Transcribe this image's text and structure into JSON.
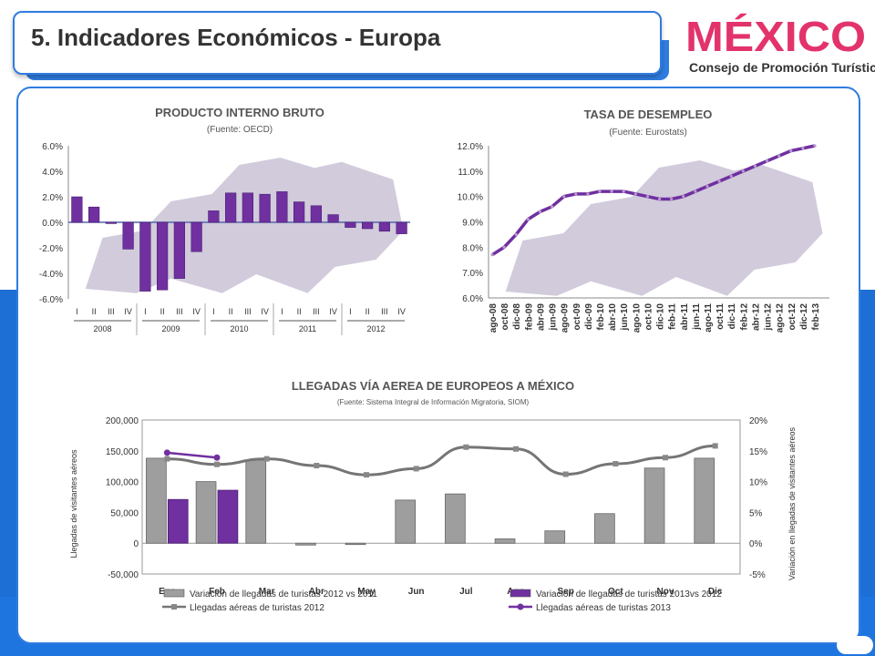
{
  "header": {
    "title": "5. Indicadores Económicos - Europa"
  },
  "logo": {
    "wordmark": "MÉXICO",
    "subtitle": "Consejo de Promoción Turística"
  },
  "colors": {
    "purple": "#7030a0",
    "gray": "#9e9e9e",
    "blue": "#2f7ce0",
    "map": "#c9c2d6"
  },
  "chart_data": [
    {
      "type": "bar",
      "title": "PRODUCTO INTERNO BRUTO",
      "subtitle": "(Fuente: OECD)",
      "ylim": [
        -6,
        6
      ],
      "yticks": [
        "6.0%",
        "4.0%",
        "2.0%",
        "0.0%",
        "-2.0%",
        "-4.0%",
        "-6.0%"
      ],
      "categories": [
        "I",
        "II",
        "III",
        "IV",
        "I",
        "II",
        "III",
        "IV",
        "I",
        "II",
        "III",
        "IV",
        "I",
        "II",
        "III",
        "IV",
        "I",
        "II",
        "III",
        "IV"
      ],
      "groups": [
        "2008",
        "2009",
        "2010",
        "2011",
        "2012"
      ],
      "values": [
        2.0,
        1.2,
        -0.1,
        -2.1,
        -5.4,
        -5.3,
        -4.4,
        -2.3,
        0.9,
        2.3,
        2.3,
        2.2,
        2.4,
        1.6,
        1.3,
        0.6,
        -0.4,
        -0.5,
        -0.7,
        -0.9
      ]
    },
    {
      "type": "line",
      "title": "TASA DE DESEMPLEO",
      "subtitle": "(Fuente: Eurostats)",
      "ylim": [
        6,
        12
      ],
      "yticks": [
        "12.0%",
        "11.0%",
        "10.0%",
        "9.0%",
        "8.0%",
        "7.0%",
        "6.0%"
      ],
      "x": [
        "ago-08",
        "oct-08",
        "dic-08",
        "feb-09",
        "abr-09",
        "jun-09",
        "ago-09",
        "oct-09",
        "dic-09",
        "feb-10",
        "abr-10",
        "jun-10",
        "ago-10",
        "oct-10",
        "dic-10",
        "feb-11",
        "abr-11",
        "jun-11",
        "ago-11",
        "oct-11",
        "dic-11",
        "feb-12",
        "abr-12",
        "jun-12",
        "ago-12",
        "oct-12",
        "dic-12",
        "feb-13"
      ],
      "values": [
        7.7,
        8.0,
        8.5,
        9.1,
        9.4,
        9.6,
        10.0,
        10.1,
        10.1,
        10.2,
        10.2,
        10.2,
        10.1,
        10.0,
        9.9,
        9.9,
        10.0,
        10.2,
        10.4,
        10.6,
        10.8,
        11.0,
        11.2,
        11.4,
        11.6,
        11.8,
        11.9,
        12.0
      ]
    },
    {
      "type": "bar",
      "title": "LLEGADAS VÍA AEREA DE EUROPEOS A MÉXICO",
      "subtitle": "(Fuente: Sistema Integral de Información Migratoria, SIOM)",
      "ylabel": "Llegadas de visitantes aéreos",
      "y2label": "Variación en llegadas de visitantes aéreos",
      "ylim": [
        -50000,
        200000
      ],
      "y2lim": [
        -5,
        20
      ],
      "yticks": [
        "200,000",
        "150,000",
        "100,000",
        "50,000",
        "0",
        "-50,000"
      ],
      "y2ticks": [
        "20%",
        "15%",
        "10%",
        "5%",
        "0%",
        "-5%"
      ],
      "categories": [
        "Ene",
        "Feb",
        "Mar",
        "Abr",
        "May",
        "Jun",
        "Jul",
        "Ago",
        "Sep",
        "Oct",
        "Nov",
        "Dic"
      ],
      "series": [
        {
          "name": "Variacion de llegadas de turistas 2012 vs 2011",
          "kind": "bar",
          "color": "#9e9e9e",
          "values": [
            138000,
            100000,
            135000,
            -3000,
            -2000,
            70000,
            80000,
            7000,
            20000,
            48000,
            122000,
            138000
          ]
        },
        {
          "name": "Variacion de llegadas de turistas  2013vs 2012",
          "kind": "bar",
          "color": "#7030a0",
          "values": [
            71000,
            86000,
            null,
            null,
            null,
            null,
            null,
            null,
            null,
            null,
            null,
            null
          ]
        },
        {
          "name": "Llegadas aéreas de turistas 2012",
          "kind": "line",
          "color": "#757575",
          "values": [
            13.7,
            12.8,
            13.7,
            12.6,
            11.1,
            12.1,
            15.6,
            15.3,
            11.2,
            12.9,
            13.9,
            15.8
          ]
        },
        {
          "name": "Llegadas aéreas de turistas 2013",
          "kind": "line",
          "color": "#7030a0",
          "values": [
            14.7,
            13.9,
            null,
            null,
            null,
            null,
            null,
            null,
            null,
            null,
            null,
            null
          ]
        }
      ]
    }
  ]
}
